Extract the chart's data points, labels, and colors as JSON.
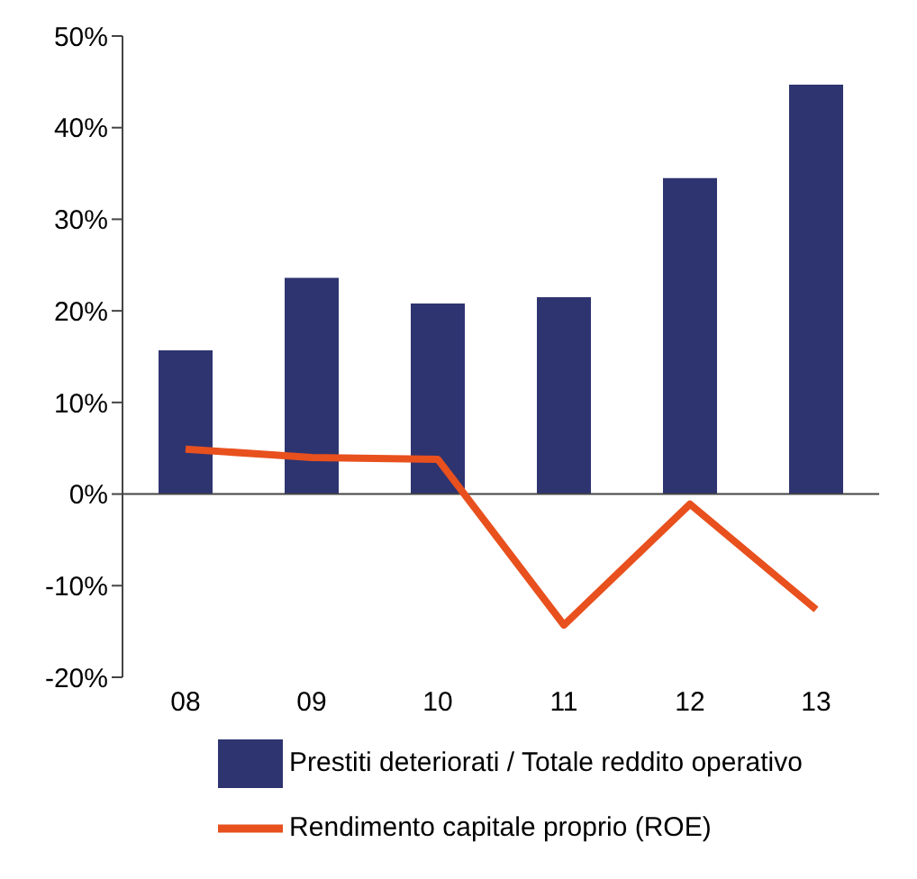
{
  "chart_data": {
    "type": "bar",
    "categories": [
      "08",
      "09",
      "10",
      "11",
      "12",
      "13"
    ],
    "series": [
      {
        "name": "Prestiti deteriorati / Totale reddito operativo",
        "color": "#2e3470",
        "values": [
          15.7,
          23.6,
          20.8,
          21.5,
          34.5,
          44.7
        ]
      },
      {
        "name": "Rendimento capitale proprio (ROE)",
        "type": "line",
        "color": "#e8501e",
        "values": [
          4.9,
          4.0,
          3.8,
          -14.3,
          -1.1,
          -12.6
        ]
      }
    ],
    "ylim": [
      -20,
      50
    ],
    "yticks": [
      {
        "value": -20,
        "label": "-20%"
      },
      {
        "value": -10,
        "label": "-10%"
      },
      {
        "value": 0,
        "label": "0%"
      },
      {
        "value": 10,
        "label": "10%"
      },
      {
        "value": 20,
        "label": "20%"
      },
      {
        "value": 30,
        "label": "30%"
      },
      {
        "value": 40,
        "label": "40%"
      },
      {
        "value": 50,
        "label": "50%"
      }
    ],
    "ref_lines": [
      {
        "axis": "y",
        "value": 0
      }
    ],
    "legend": "bottom",
    "marker": "none"
  }
}
